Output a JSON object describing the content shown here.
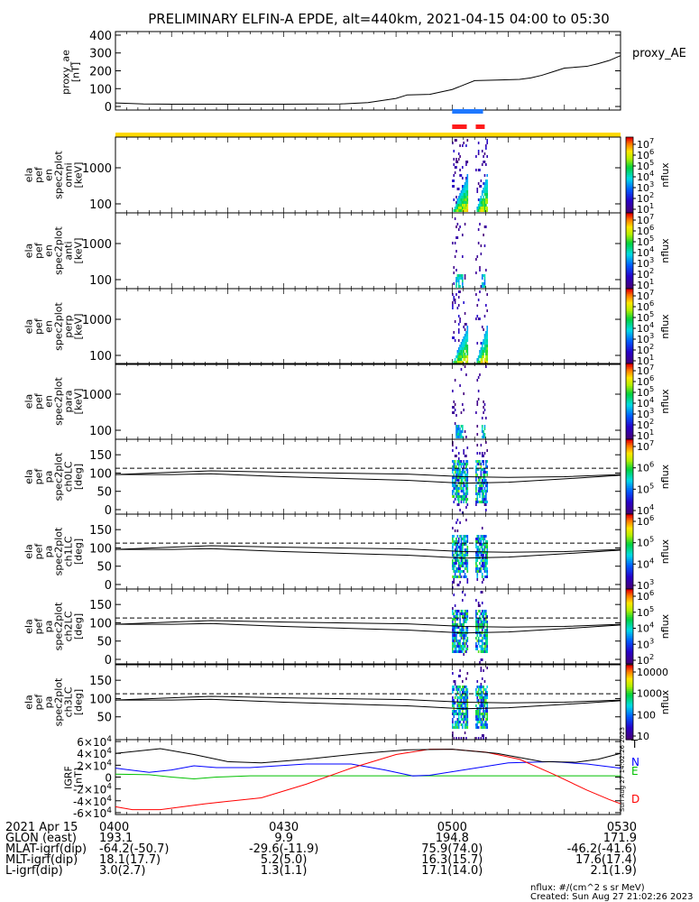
{
  "title": "PRELIMINARY ELFIN-A EPDE, alt=440km, 2021-04-15 04:00 to 05:30",
  "proxy_ae": {
    "ylabel_lines": [
      "proxy_ae",
      "[nT]"
    ],
    "legend": "proxy_AE",
    "yticks": [
      0,
      100,
      200,
      300,
      400
    ],
    "ylim": [
      -20,
      420
    ],
    "series": [
      [
        0,
        20
      ],
      [
        5,
        14
      ],
      [
        10,
        13
      ],
      [
        20,
        13
      ],
      [
        30,
        13
      ],
      [
        40,
        14
      ],
      [
        45,
        22
      ],
      [
        50,
        45
      ],
      [
        52,
        65
      ],
      [
        56,
        68
      ],
      [
        60,
        95
      ],
      [
        62,
        120
      ],
      [
        64,
        145
      ],
      [
        68,
        148
      ],
      [
        72,
        152
      ],
      [
        74,
        160
      ],
      [
        76,
        175
      ],
      [
        78,
        195
      ],
      [
        80,
        215
      ],
      [
        84,
        225
      ],
      [
        86,
        240
      ],
      [
        88,
        258
      ],
      [
        90,
        285
      ]
    ]
  },
  "science_zone_bars": {
    "blue": [
      [
        60,
        65.5
      ]
    ],
    "red": [
      [
        60,
        62.6
      ],
      [
        64.2,
        65.8
      ]
    ],
    "orbit_color": "#ffd800"
  },
  "energy_panels": [
    {
      "ylabel_lines": [
        "ela",
        "pef",
        "en",
        "spec2plot",
        "omni",
        "[keV]"
      ],
      "yticks": [
        "100",
        "1000"
      ],
      "cb_ticks": [
        "10^7",
        "10^6",
        "10^5",
        "10^4",
        "10^3",
        "10^2",
        "10^1"
      ],
      "cb_label": "nflux"
    },
    {
      "ylabel_lines": [
        "ela",
        "pef",
        "en",
        "spec2plot",
        "anti",
        "[keV]"
      ],
      "yticks": [
        "100",
        "1000"
      ],
      "cb_ticks": [
        "10^7",
        "10^6",
        "10^5",
        "10^4",
        "10^3",
        "10^2",
        "10^1"
      ],
      "cb_label": "nflux"
    },
    {
      "ylabel_lines": [
        "ela",
        "pef",
        "en",
        "spec2plot",
        "perp",
        "[keV]"
      ],
      "yticks": [
        "100",
        "1000"
      ],
      "cb_ticks": [
        "10^7",
        "10^6",
        "10^5",
        "10^4",
        "10^3",
        "10^2",
        "10^1"
      ],
      "cb_label": "nflux"
    },
    {
      "ylabel_lines": [
        "ela",
        "pef",
        "en",
        "spec2plot",
        "para",
        "[keV]"
      ],
      "yticks": [
        "100",
        "1000"
      ],
      "cb_ticks": [
        "10^7",
        "10^6",
        "10^5",
        "10^4",
        "10^3",
        "10^2",
        "10^1"
      ],
      "cb_label": "nflux"
    }
  ],
  "pa_panels": [
    {
      "ylabel_lines": [
        "ela",
        "pef",
        "pa",
        "spec2plot",
        "ch0LC",
        "[deg]"
      ],
      "yticks": [
        "0",
        "50",
        "100",
        "150"
      ],
      "cb_ticks": [
        "10^7",
        "10^6",
        "10^5",
        "10^4"
      ],
      "cb_label": "nflux"
    },
    {
      "ylabel_lines": [
        "ela",
        "pef",
        "pa",
        "spec2plot",
        "ch1LC",
        "[deg]"
      ],
      "yticks": [
        "0",
        "50",
        "100",
        "150"
      ],
      "cb_ticks": [
        "10^6",
        "10^5",
        "10^4",
        "10^3"
      ],
      "cb_label": "nflux"
    },
    {
      "ylabel_lines": [
        "ela",
        "pef",
        "pa",
        "spec2plot",
        "ch2LC",
        "[deg]"
      ],
      "yticks": [
        "0",
        "50",
        "100",
        "150"
      ],
      "cb_ticks": [
        "10^6",
        "10^5",
        "10^4",
        "10^3",
        "10^2"
      ],
      "cb_label": "nflux"
    },
    {
      "ylabel_lines": [
        "ela",
        "pef",
        "pa",
        "spec2plot",
        "ch3LC",
        "[deg]"
      ],
      "yticks": [
        "50",
        "100",
        "150"
      ],
      "cb_ticks": [
        "10000",
        "1000",
        "100",
        "10"
      ],
      "cb_label": "nflux"
    }
  ],
  "igrf": {
    "ylabel_lines": [
      "IGRF",
      "[nT]"
    ],
    "yticks": [
      "-6×10^4",
      "-4×10^4",
      "-2×10^4",
      "0",
      "2×10^4",
      "4×10^4",
      "6×10^4"
    ],
    "legend": [
      {
        "label": "T",
        "color": "#000000"
      },
      {
        "label": "N",
        "color": "#0000ff"
      },
      {
        "label": "E",
        "color": "#00c000"
      },
      {
        "label": "D",
        "color": "#ff0000"
      }
    ],
    "side_text": "Sun Aug 27 14:02:26 2023",
    "series": {
      "T": [
        [
          0,
          40
        ],
        [
          8,
          48
        ],
        [
          14,
          38
        ],
        [
          20,
          26
        ],
        [
          26,
          24
        ],
        [
          34,
          30
        ],
        [
          44,
          40
        ],
        [
          52,
          46
        ],
        [
          60,
          47
        ],
        [
          68,
          40
        ],
        [
          76,
          26
        ],
        [
          82,
          25
        ],
        [
          86,
          30
        ],
        [
          90,
          40
        ]
      ],
      "N": [
        [
          0,
          15
        ],
        [
          6,
          8
        ],
        [
          10,
          12
        ],
        [
          14,
          19
        ],
        [
          18,
          16
        ],
        [
          24,
          16
        ],
        [
          34,
          22
        ],
        [
          42,
          22
        ],
        [
          48,
          12
        ],
        [
          53,
          2
        ],
        [
          56,
          3
        ],
        [
          62,
          12
        ],
        [
          70,
          24
        ],
        [
          78,
          26
        ],
        [
          84,
          22
        ],
        [
          90,
          15
        ]
      ],
      "E": [
        [
          0,
          5
        ],
        [
          6,
          4
        ],
        [
          10,
          0
        ],
        [
          14,
          -3
        ],
        [
          18,
          0
        ],
        [
          24,
          2
        ],
        [
          40,
          2
        ],
        [
          60,
          2
        ],
        [
          90,
          2
        ]
      ],
      "D": [
        [
          0,
          -50
        ],
        [
          3,
          -55
        ],
        [
          8,
          -55
        ],
        [
          16,
          -45
        ],
        [
          26,
          -35
        ],
        [
          34,
          -12
        ],
        [
          42,
          15
        ],
        [
          50,
          38
        ],
        [
          56,
          47
        ],
        [
          60,
          47
        ],
        [
          66,
          42
        ],
        [
          72,
          30
        ],
        [
          78,
          5
        ],
        [
          84,
          -22
        ],
        [
          88,
          -38
        ],
        [
          90,
          -45
        ]
      ]
    }
  },
  "time_axis": {
    "row_labels": [
      "2021 Apr 15",
      "GLON (east)",
      "MLAT-igrf(dip)",
      "MLT-igrf(dip)",
      "L-igrf(dip)"
    ],
    "columns": [
      {
        "time": "0400",
        "values": [
          "193.1",
          "-64.2(-50.7)",
          "18.1(17.7)",
          "3.0(2.7)"
        ]
      },
      {
        "time": "0430",
        "values": [
          "9.9",
          "-29.6(-11.9)",
          "5.2(5.0)",
          "1.3(1.1)"
        ]
      },
      {
        "time": "0500",
        "values": [
          "194.8",
          "75.9(74.0)",
          "16.3(15.7)",
          "17.1(14.0)"
        ]
      },
      {
        "time": "0530",
        "values": [
          "171.9",
          "-46.2(-41.6)",
          "17.6(17.4)",
          "2.1(1.9)"
        ]
      }
    ]
  },
  "footer": [
    "nflux: #/(cm^2 s sr MeV)",
    "Created: Sun Aug 27 21:02:26 2023"
  ],
  "chart_data": [
    {
      "type": "line",
      "name": "proxy_ae",
      "x_unit": "minutes after 04:00",
      "ylabel": "proxy_ae [nT]",
      "ylim": [
        0,
        400
      ],
      "series": [
        {
          "name": "proxy_AE",
          "ref": "proxy_ae.series"
        }
      ]
    },
    {
      "type": "heatmap",
      "name": "energy spectrograms",
      "panels": [
        "omni",
        "anti",
        "perp",
        "para"
      ],
      "y_scale": "log",
      "ylabel_unit": "keV",
      "yticks": [
        100,
        1000
      ],
      "active_interval_minutes": [
        60,
        66
      ]
    },
    {
      "type": "heatmap",
      "name": "pitch-angle spectrograms",
      "panels": [
        "ch0LC",
        "ch1LC",
        "ch2LC",
        "ch3LC"
      ],
      "ylim": [
        0,
        180
      ],
      "ylabel_unit": "deg",
      "active_interval_minutes": [
        60,
        66
      ]
    },
    {
      "type": "line",
      "name": "IGRF",
      "ylabel": "IGRF [nT]",
      "ylim": [
        -60000,
        60000
      ],
      "series": [
        {
          "name": "T"
        },
        {
          "name": "N"
        },
        {
          "name": "E"
        },
        {
          "name": "D"
        }
      ]
    }
  ]
}
